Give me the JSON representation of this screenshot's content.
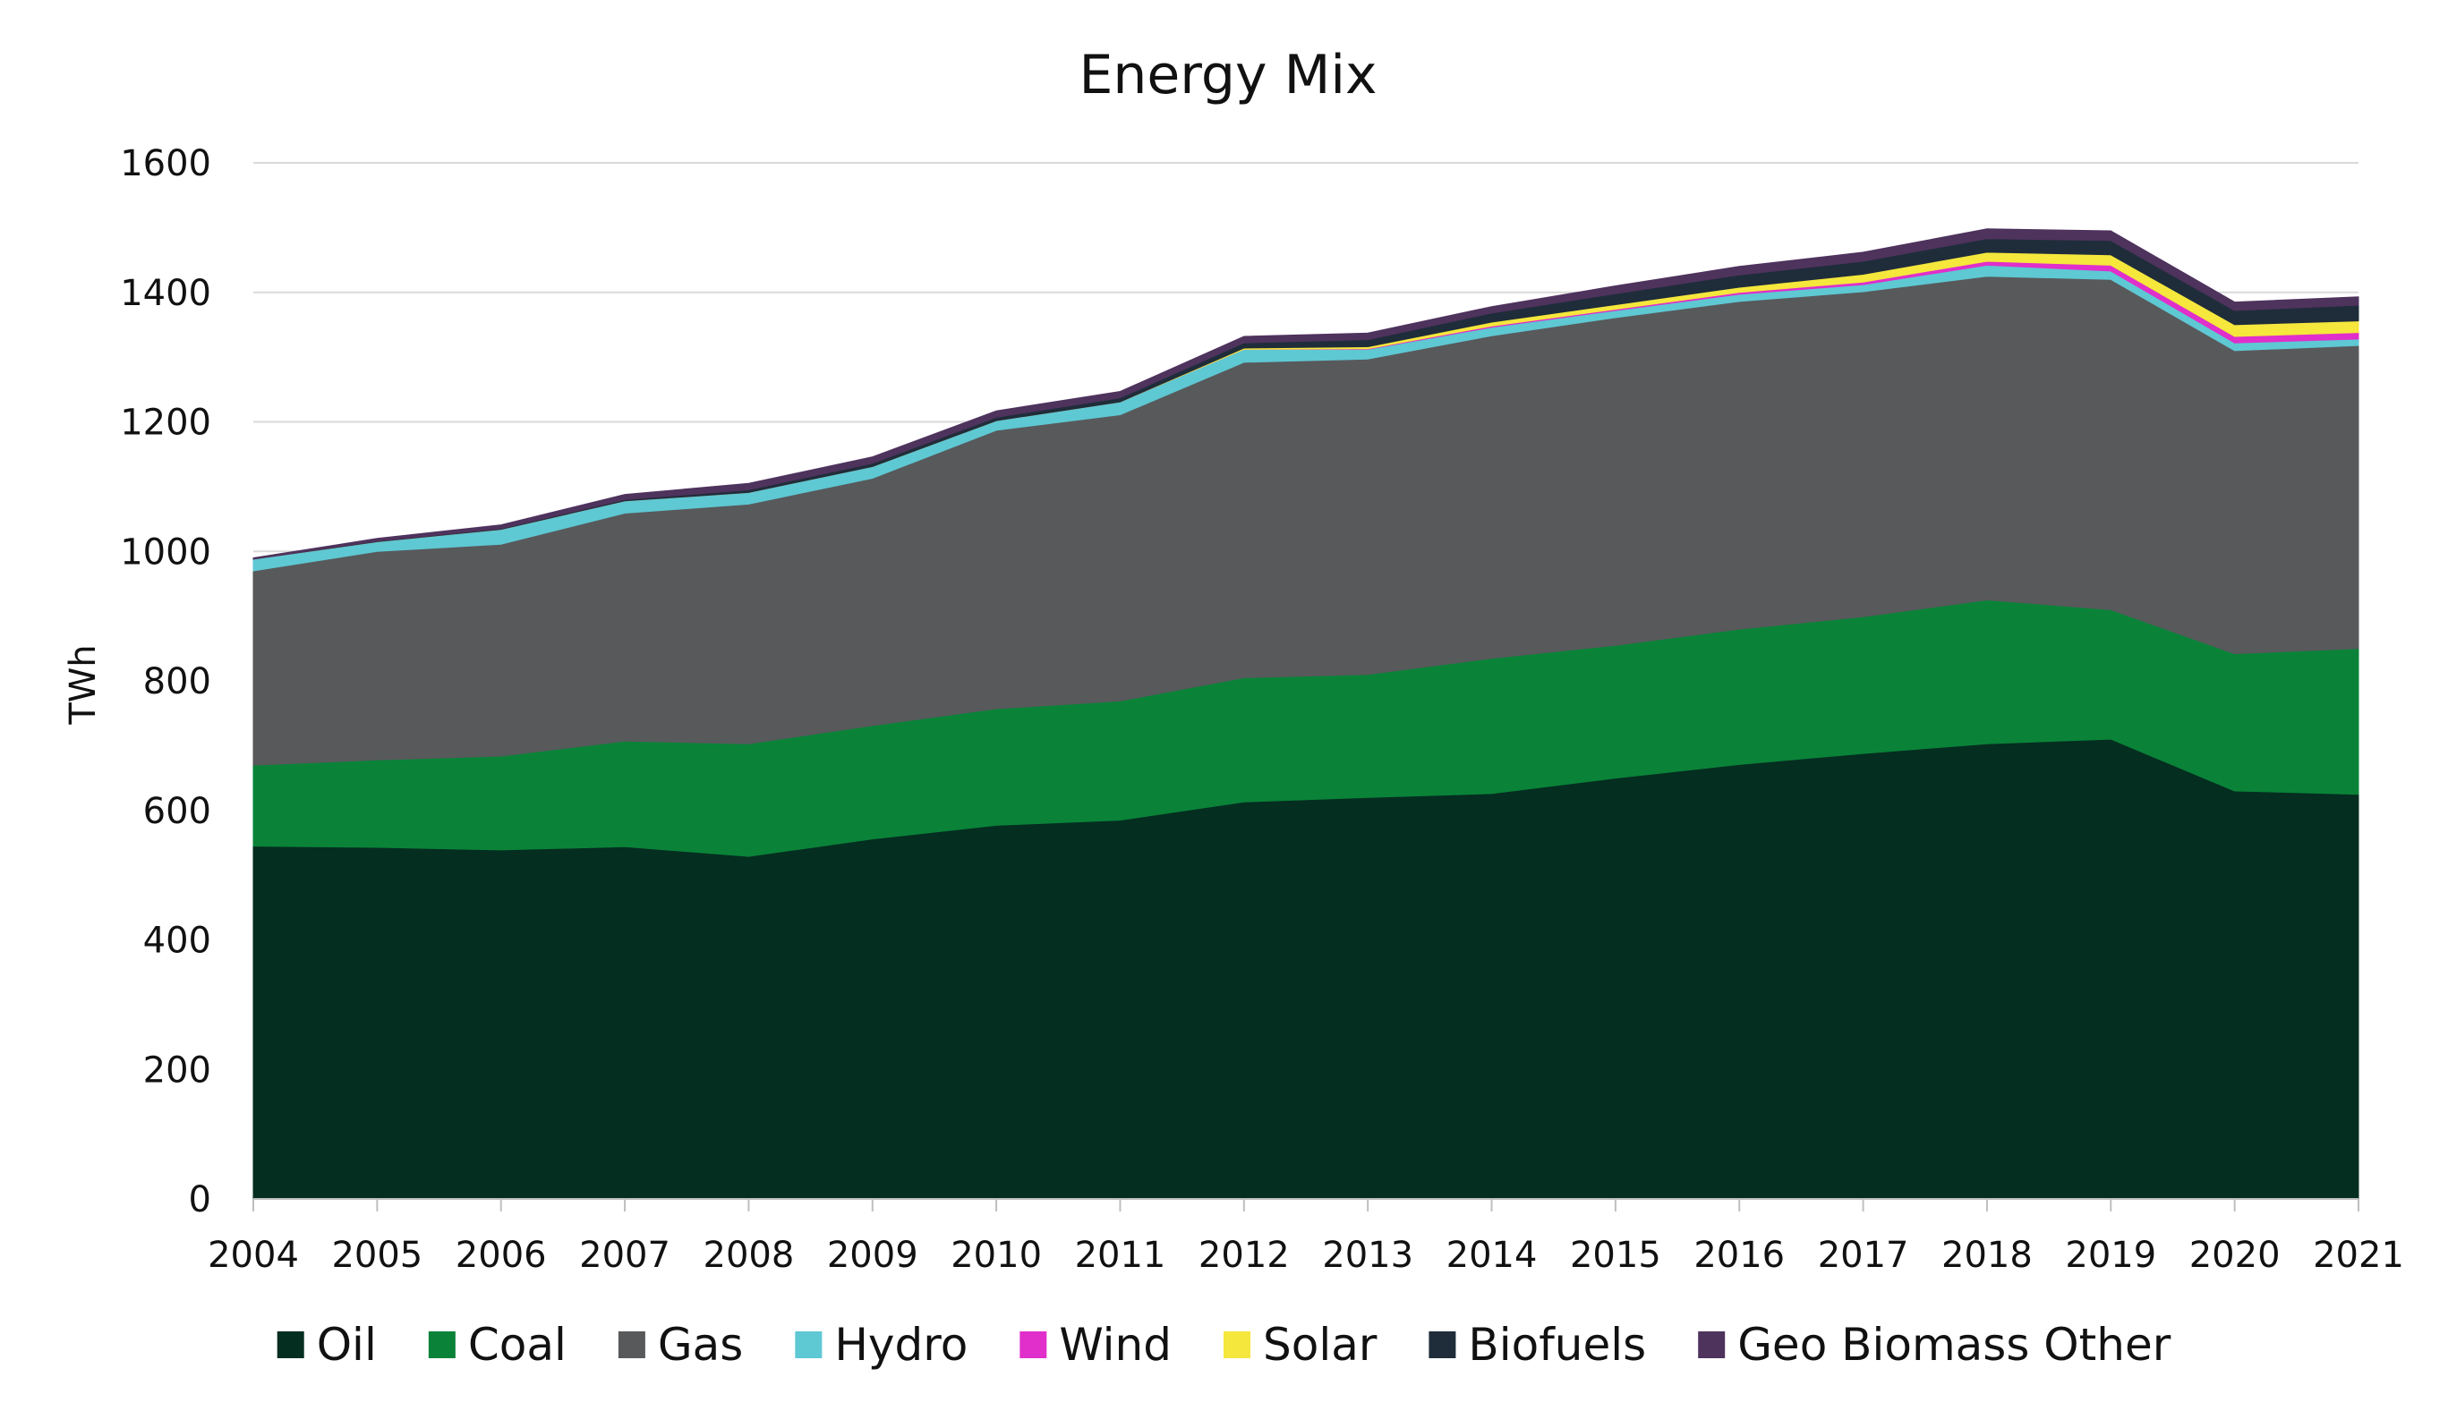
{
  "chart_data": {
    "type": "area",
    "stacked": true,
    "title": "Energy Mix",
    "xlabel": "",
    "ylabel": "TWh",
    "ylim": [
      0,
      1600
    ],
    "yticks": [
      0,
      200,
      400,
      600,
      800,
      1000,
      1200,
      1400,
      1600
    ],
    "grid": true,
    "legend_position": "bottom",
    "categories": [
      "2004",
      "2005",
      "2006",
      "2007",
      "2008",
      "2009",
      "2010",
      "2011",
      "2012",
      "2013",
      "2014",
      "2015",
      "2016",
      "2017",
      "2018",
      "2019",
      "2020",
      "2021"
    ],
    "series": [
      {
        "name": "Oil",
        "color": "#042e20",
        "values": [
          545,
          543,
          539,
          544,
          529,
          556,
          577,
          585,
          613,
          620,
          626,
          650,
          671,
          688,
          703,
          710,
          630,
          625
        ]
      },
      {
        "name": "Coal",
        "color": "#0a8339",
        "values": [
          125,
          135,
          145,
          163,
          174,
          175,
          180,
          184,
          192,
          190,
          209,
          205,
          209,
          211,
          222,
          200,
          212,
          225
        ]
      },
      {
        "name": "Gas",
        "color": "#58595b",
        "values": [
          300,
          322,
          327,
          352,
          370,
          382,
          430,
          442,
          487,
          487,
          498,
          506,
          506,
          502,
          500,
          510,
          468,
          468
        ]
      },
      {
        "name": "Hydro",
        "color": "#5ec8d3",
        "values": [
          18,
          15,
          23,
          19,
          18,
          18,
          15,
          20,
          20,
          15,
          13,
          11,
          11,
          11,
          17,
          13,
          12,
          10
        ]
      },
      {
        "name": "Wind",
        "color": "#e02fcb",
        "values": [
          0,
          0,
          0,
          0,
          0,
          0,
          0,
          0,
          0,
          1,
          2,
          2,
          3,
          4,
          6,
          9,
          10,
          10
        ]
      },
      {
        "name": "Solar",
        "color": "#f5e73c",
        "values": [
          0,
          0,
          0,
          0,
          0,
          0,
          0,
          0,
          2,
          3,
          6,
          7,
          8,
          12,
          14,
          16,
          18,
          18
        ]
      },
      {
        "name": "Biofuels",
        "color": "#1f2d3a",
        "values": [
          0,
          1,
          1,
          2,
          4,
          5,
          5,
          6,
          8,
          11,
          14,
          17,
          19,
          20,
          21,
          22,
          22,
          24
        ]
      },
      {
        "name": "Geo Biomass Other",
        "color": "#4e335d",
        "values": [
          2,
          4,
          6,
          8,
          10,
          10,
          10,
          10,
          10,
          10,
          10,
          12,
          13,
          14,
          15,
          15,
          13,
          13
        ]
      }
    ]
  }
}
